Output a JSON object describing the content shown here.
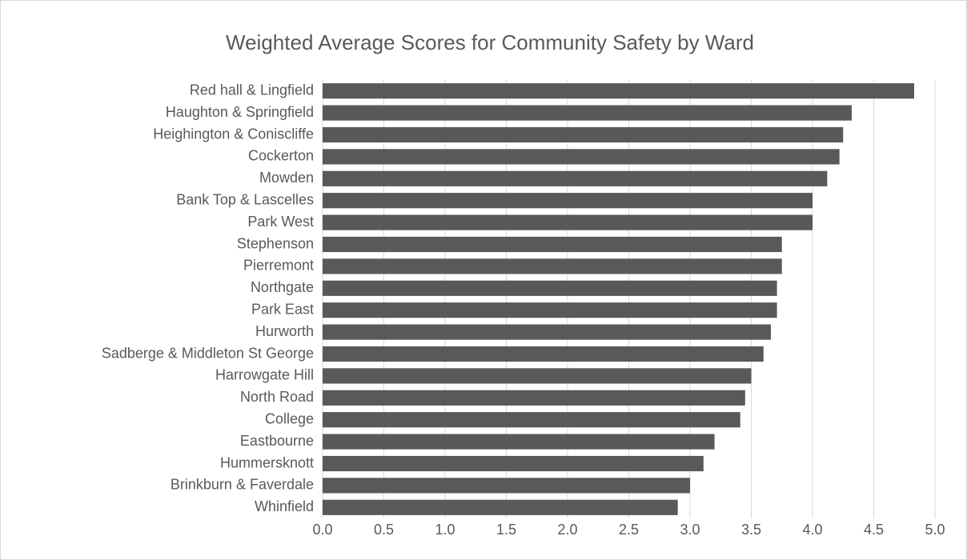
{
  "chart_data": {
    "type": "bar",
    "orientation": "horizontal",
    "title": "Weighted Average Scores for Community Safety by Ward",
    "categories": [
      "Red hall & Lingfield",
      "Haughton & Springfield",
      "Heighington & Coniscliffe",
      "Cockerton",
      "Mowden",
      "Bank Top & Lascelles",
      "Park West",
      "Stephenson",
      "Pierremont",
      "Northgate",
      "Park East",
      "Hurworth",
      "Sadberge & Middleton St George",
      "Harrowgate Hill",
      "North Road",
      "College",
      "Eastbourne",
      "Hummersknott",
      "Brinkburn & Faverdale",
      "Whinfield"
    ],
    "values": [
      4.83,
      4.32,
      4.25,
      4.22,
      4.12,
      4.0,
      4.0,
      3.75,
      3.75,
      3.71,
      3.71,
      3.66,
      3.6,
      3.5,
      3.45,
      3.41,
      3.2,
      3.11,
      3.0,
      2.9
    ],
    "color": "#595959",
    "xlim": [
      0,
      5
    ],
    "xticks": [
      {
        "value": 0,
        "label": "0.0"
      },
      0.5,
      {
        "value": 1,
        "label": "1.0"
      },
      1.5,
      {
        "value": 2,
        "label": "2.0"
      },
      2.5,
      {
        "value": 3,
        "label": "3.0"
      },
      3.5,
      {
        "value": 4,
        "label": "4.0"
      },
      4.5,
      {
        "value": 5,
        "label": "5.0"
      }
    ],
    "grid": true
  }
}
